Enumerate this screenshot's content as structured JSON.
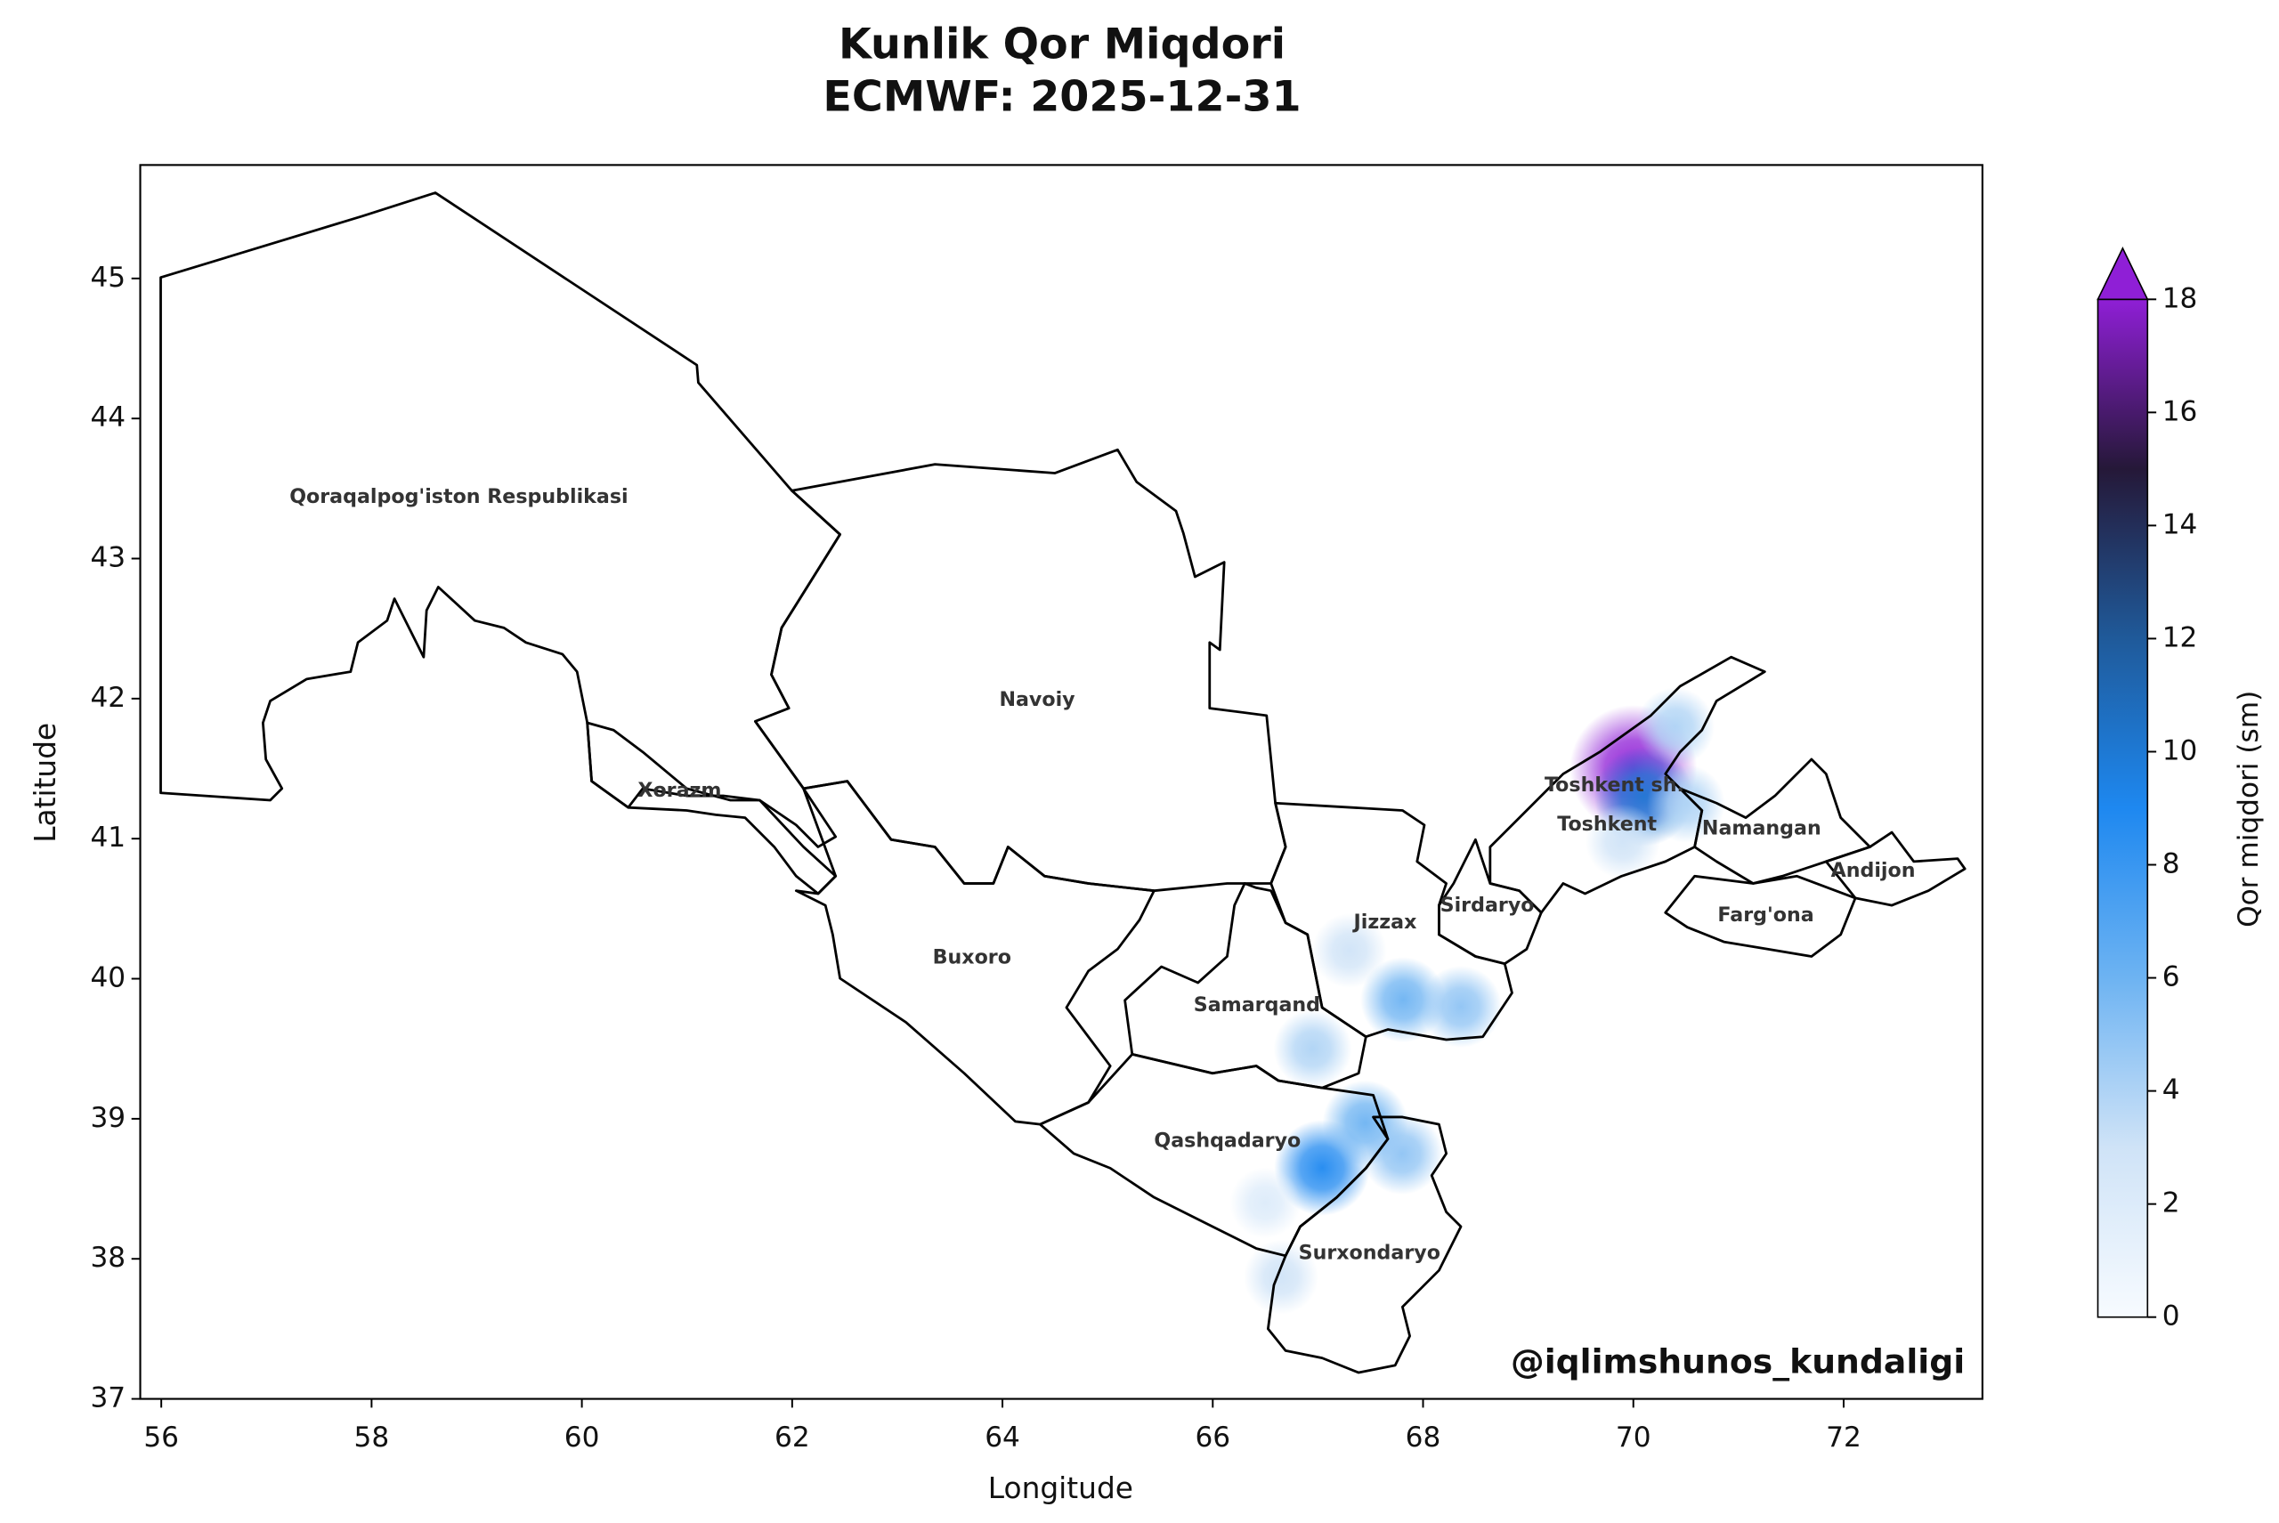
{
  "chart_data": {
    "type": "map",
    "title": "Kunlik Qor Miqdori",
    "subtitle": "ECMWF: 2025-12-31",
    "x_label": "Longitude",
    "y_label": "Latitude",
    "xlim": [
      55.8,
      73.32
    ],
    "ylim": [
      37,
      45.81
    ],
    "xticks": [
      56,
      58,
      60,
      62,
      64,
      66,
      68,
      70,
      72
    ],
    "yticks": [
      37,
      38,
      39,
      40,
      41,
      42,
      43,
      44,
      45
    ],
    "colorbar": {
      "label": "Qor miqdori (sm)",
      "lim": [
        0,
        18
      ],
      "ticks": [
        0,
        2,
        4,
        6,
        8,
        10,
        12,
        14,
        16,
        18
      ],
      "extend": "max",
      "colors": [
        "#f7fbff",
        "#cfe3f7",
        "#6db3f2",
        "#1e88f0",
        "#1f5a9a",
        "#251838",
        "#8f1fd6"
      ]
    },
    "snow": [
      {
        "lon": 70.0,
        "lat": 41.5,
        "value": 18
      },
      {
        "lon": 70.1,
        "lat": 41.3,
        "value": 10
      },
      {
        "lon": 70.4,
        "lat": 41.8,
        "value": 4
      },
      {
        "lon": 69.9,
        "lat": 40.98,
        "value": 3
      },
      {
        "lon": 70.5,
        "lat": 41.25,
        "value": 4
      },
      {
        "lon": 67.81,
        "lat": 39.85,
        "value": 6
      },
      {
        "lon": 68.36,
        "lat": 39.8,
        "value": 5
      },
      {
        "lon": 67.3,
        "lat": 40.2,
        "value": 3
      },
      {
        "lon": 67.04,
        "lat": 38.65,
        "value": 9
      },
      {
        "lon": 67.45,
        "lat": 38.97,
        "value": 6
      },
      {
        "lon": 67.8,
        "lat": 38.75,
        "value": 5
      },
      {
        "lon": 66.95,
        "lat": 39.5,
        "value": 4
      },
      {
        "lon": 66.65,
        "lat": 37.87,
        "value": 3
      },
      {
        "lon": 66.5,
        "lat": 38.4,
        "value": 2
      }
    ],
    "regions": [
      {
        "name": "Qoraqalpog'iston Respublikasi",
        "lon": 58.83,
        "lat": 43.44
      },
      {
        "name": "Navoiy",
        "lon": 64.33,
        "lat": 41.99
      },
      {
        "name": "Xorazm",
        "lon": 60.93,
        "lat": 41.34
      },
      {
        "name": "Buxoro",
        "lon": 63.71,
        "lat": 40.15
      },
      {
        "name": "Samarqand",
        "lon": 66.42,
        "lat": 39.81
      },
      {
        "name": "Jizzax",
        "lon": 67.64,
        "lat": 40.4
      },
      {
        "name": "Sirdaryo",
        "lon": 68.61,
        "lat": 40.52
      },
      {
        "name": "Toshkent sh.",
        "lon": 69.82,
        "lat": 41.38
      },
      {
        "name": "Toshkent",
        "lon": 69.75,
        "lat": 41.1
      },
      {
        "name": "Namangan",
        "lon": 71.22,
        "lat": 41.07
      },
      {
        "name": "Andijon",
        "lon": 72.28,
        "lat": 40.77
      },
      {
        "name": "Farg'ona",
        "lon": 71.26,
        "lat": 40.45
      },
      {
        "name": "Qashqadaryo",
        "lon": 66.14,
        "lat": 38.84
      },
      {
        "name": "Surxondaryo",
        "lon": 67.49,
        "lat": 38.04
      }
    ],
    "watermark": "@iqlimshunos_kundaligi"
  }
}
